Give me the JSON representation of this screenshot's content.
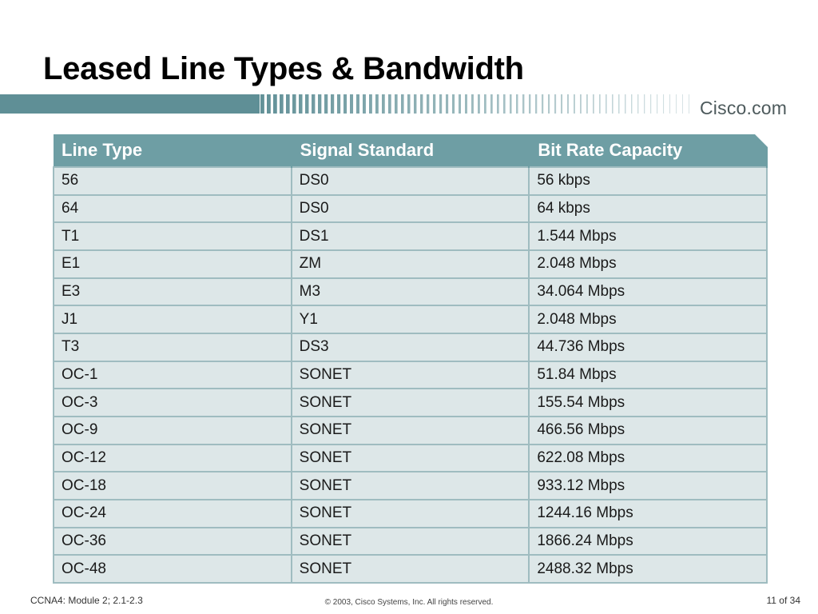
{
  "slide": {
    "title": "Leased Line Types & Bandwidth",
    "brand": "Cisco.com"
  },
  "table": {
    "headers": [
      "Line Type",
      "Signal Standard",
      "Bit Rate Capacity"
    ],
    "rows": [
      [
        "56",
        "DS0",
        "56 kbps"
      ],
      [
        "64",
        "DS0",
        "64 kbps"
      ],
      [
        "T1",
        "DS1",
        "1.544 Mbps"
      ],
      [
        "E1",
        "ZM",
        "2.048 Mbps"
      ],
      [
        "E3",
        "M3",
        "34.064 Mbps"
      ],
      [
        "J1",
        "Y1",
        "2.048 Mbps"
      ],
      [
        "T3",
        "DS3",
        "44.736 Mbps"
      ],
      [
        "OC-1",
        "SONET",
        "51.84 Mbps"
      ],
      [
        "OC-3",
        "SONET",
        "155.54 Mbps"
      ],
      [
        "OC-9",
        "SONET",
        "466.56 Mbps"
      ],
      [
        "OC-12",
        "SONET",
        "622.08 Mbps"
      ],
      [
        "OC-18",
        "SONET",
        "933.12 Mbps"
      ],
      [
        "OC-24",
        "SONET",
        "1244.16 Mbps"
      ],
      [
        "OC-36",
        "SONET",
        "1866.24 Mbps"
      ],
      [
        "OC-48",
        "SONET",
        "2488.32 Mbps"
      ]
    ]
  },
  "footer": {
    "left": "CCNA4: Module 2; 2.1-2.3",
    "center": "© 2003, Cisco Systems, Inc. All rights reserved.",
    "right": "11 of 34"
  },
  "colors": {
    "banner": "#5f8f96",
    "header_bg": "#6e9ea4",
    "cell_bg": "#dde7e8",
    "grid": "#9fbcc0"
  }
}
